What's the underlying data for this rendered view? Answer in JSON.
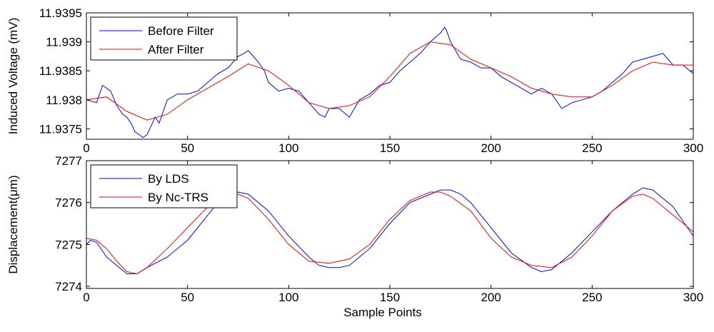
{
  "chart_data": [
    {
      "type": "line",
      "ylabel": "Induced Voltage (mV)",
      "xlabel": "",
      "xlim": [
        0,
        300
      ],
      "ylim": [
        11.93732,
        11.9395
      ],
      "xticks": [
        0,
        50,
        100,
        150,
        200,
        250,
        300
      ],
      "yticks": [
        11.9375,
        11.938,
        11.9385,
        11.939,
        11.9395
      ],
      "ytick_labels": [
        "11.9375",
        "11.938",
        "11.9385",
        "11.939",
        "11.9395"
      ],
      "grid": false,
      "legend_position": "top-left",
      "series": [
        {
          "name": "Before Filter",
          "color": "#0000ff",
          "x": [
            0,
            5,
            8,
            12,
            15,
            18,
            20,
            22,
            24,
            26,
            28,
            30,
            32,
            34,
            36,
            38,
            40,
            45,
            50,
            55,
            60,
            65,
            70,
            75,
            78,
            80,
            85,
            88,
            90,
            95,
            100,
            105,
            110,
            115,
            118,
            120,
            125,
            130,
            135,
            140,
            145,
            150,
            155,
            160,
            165,
            170,
            175,
            177,
            178,
            180,
            185,
            190,
            195,
            200,
            205,
            210,
            215,
            220,
            225,
            230,
            235,
            240,
            245,
            250,
            255,
            260,
            265,
            270,
            275,
            280,
            285,
            290,
            295,
            300
          ],
          "values": [
            11.938,
            11.93795,
            11.93825,
            11.93815,
            11.9379,
            11.93775,
            11.9377,
            11.9376,
            11.93745,
            11.9374,
            11.93735,
            11.9374,
            11.93755,
            11.9377,
            11.9376,
            11.9378,
            11.938,
            11.9381,
            11.9381,
            11.93815,
            11.9383,
            11.93845,
            11.93855,
            11.93875,
            11.9388,
            11.93885,
            11.93865,
            11.9385,
            11.9383,
            11.93815,
            11.9382,
            11.93815,
            11.93795,
            11.93775,
            11.9377,
            11.93785,
            11.93785,
            11.9377,
            11.938,
            11.9381,
            11.93825,
            11.9383,
            11.9385,
            11.93865,
            11.9388,
            11.939,
            11.93915,
            11.93925,
            11.9392,
            11.939,
            11.9387,
            11.93865,
            11.93855,
            11.93855,
            11.9384,
            11.9383,
            11.9382,
            11.9381,
            11.9382,
            11.9381,
            11.93785,
            11.93795,
            11.938,
            11.93805,
            11.93815,
            11.9383,
            11.93845,
            11.93865,
            11.9387,
            11.93875,
            11.9388,
            11.9386,
            11.9386,
            11.93845
          ]
        },
        {
          "name": "After Filter",
          "color": "#ff0000",
          "x": [
            0,
            10,
            20,
            30,
            40,
            50,
            60,
            70,
            80,
            90,
            100,
            110,
            120,
            130,
            140,
            150,
            160,
            170,
            180,
            190,
            200,
            210,
            220,
            230,
            240,
            250,
            260,
            270,
            280,
            290,
            300
          ],
          "values": [
            11.938,
            11.93805,
            11.9378,
            11.93765,
            11.93775,
            11.938,
            11.9382,
            11.9384,
            11.93862,
            11.9385,
            11.93825,
            11.93795,
            11.93785,
            11.9379,
            11.93805,
            11.9384,
            11.9388,
            11.939,
            11.93895,
            11.9387,
            11.93855,
            11.9384,
            11.9382,
            11.9381,
            11.93805,
            11.93805,
            11.93825,
            11.9385,
            11.93865,
            11.9386,
            11.9386
          ]
        }
      ]
    },
    {
      "type": "line",
      "ylabel": "Displacement(μm)",
      "xlabel": "Sample Points",
      "xlim": [
        0,
        300
      ],
      "ylim": [
        7273.95,
        7277
      ],
      "xticks": [
        0,
        50,
        100,
        150,
        200,
        250,
        300
      ],
      "yticks": [
        7274,
        7275,
        7276,
        7277
      ],
      "ytick_labels": [
        "7274",
        "7275",
        "7276",
        "7277"
      ],
      "grid": false,
      "legend_position": "top-left",
      "series": [
        {
          "name": "By LDS",
          "color": "#0000ff",
          "x": [
            0,
            2,
            5,
            10,
            15,
            20,
            25,
            30,
            40,
            50,
            60,
            65,
            70,
            75,
            80,
            90,
            100,
            110,
            115,
            120,
            125,
            130,
            140,
            150,
            160,
            170,
            175,
            180,
            185,
            190,
            200,
            210,
            220,
            225,
            230,
            240,
            250,
            260,
            270,
            275,
            280,
            290,
            300
          ],
          "values": [
            7275,
            7275.1,
            7275.05,
            7274.7,
            7274.5,
            7274.3,
            7274.3,
            7274.45,
            7274.7,
            7275.1,
            7275.7,
            7276,
            7276.2,
            7276.25,
            7276.2,
            7275.8,
            7275.2,
            7274.7,
            7274.5,
            7274.45,
            7274.45,
            7274.5,
            7274.9,
            7275.5,
            7276.0,
            7276.2,
            7276.3,
            7276.3,
            7276.2,
            7276.0,
            7275.4,
            7274.8,
            7274.45,
            7274.35,
            7274.4,
            7274.8,
            7275.3,
            7275.8,
            7276.2,
            7276.35,
            7276.3,
            7275.9,
            7275.2
          ]
        },
        {
          "name": "By Nc-TRS",
          "color": "#ff0000",
          "x": [
            0,
            5,
            10,
            15,
            20,
            25,
            30,
            40,
            50,
            60,
            70,
            75,
            80,
            90,
            100,
            110,
            120,
            130,
            140,
            150,
            160,
            170,
            175,
            180,
            190,
            200,
            210,
            220,
            230,
            240,
            250,
            260,
            270,
            275,
            280,
            290,
            300
          ],
          "values": [
            7275.15,
            7275.1,
            7274.9,
            7274.6,
            7274.35,
            7274.3,
            7274.45,
            7274.9,
            7275.4,
            7275.9,
            7276.2,
            7276.2,
            7276.1,
            7275.6,
            7275.0,
            7274.6,
            7274.55,
            7274.65,
            7275.0,
            7275.6,
            7276.05,
            7276.25,
            7276.25,
            7276.15,
            7275.8,
            7275.15,
            7274.7,
            7274.5,
            7274.45,
            7274.7,
            7275.2,
            7275.8,
            7276.15,
            7276.2,
            7276.1,
            7275.7,
            7275.3
          ]
        }
      ]
    }
  ]
}
